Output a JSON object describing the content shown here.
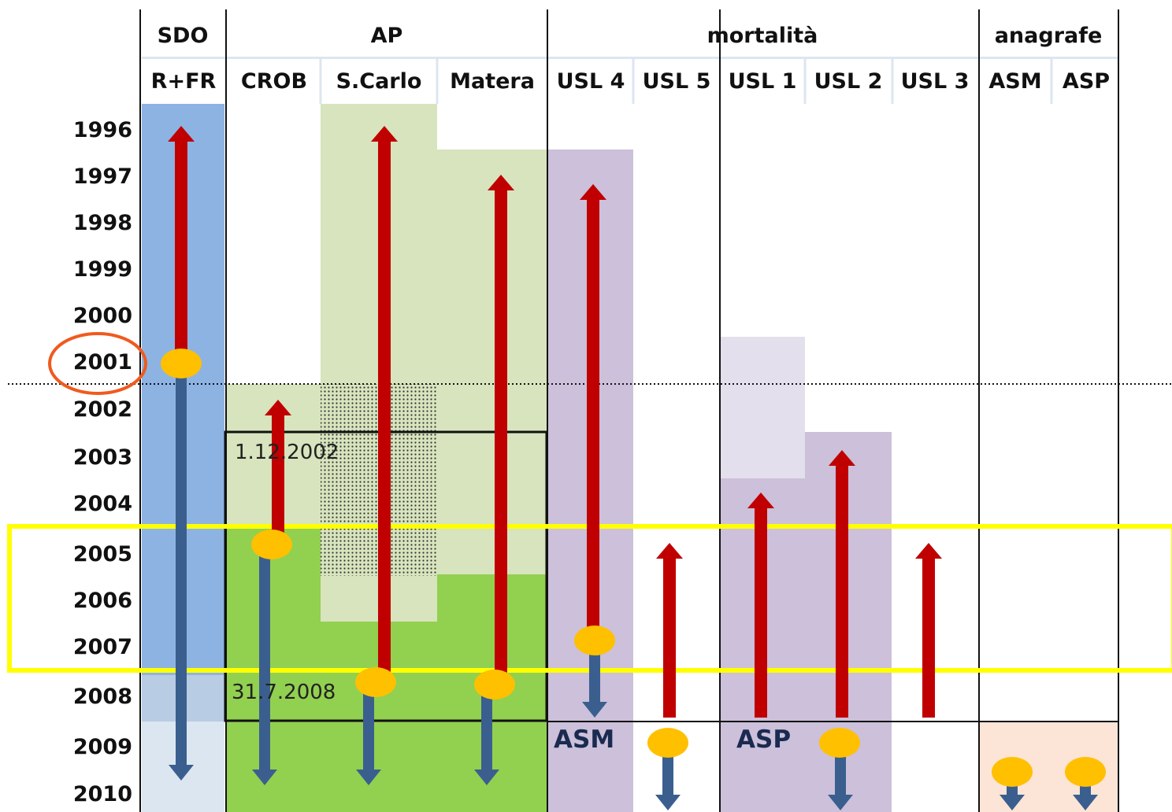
{
  "groups": [
    {
      "key": "sdo",
      "label": "SDO"
    },
    {
      "key": "ap",
      "label": "AP"
    },
    {
      "key": "mortalita",
      "label": "mortalità"
    },
    {
      "key": "anagrafe",
      "label": "anagrafe"
    }
  ],
  "columns": [
    {
      "key": "rfr",
      "label": "R+FR"
    },
    {
      "key": "crob",
      "label": "CROB"
    },
    {
      "key": "scarlo",
      "label": "S.Carlo"
    },
    {
      "key": "matera",
      "label": "Matera"
    },
    {
      "key": "usl4",
      "label": "USL 4"
    },
    {
      "key": "usl5",
      "label": "USL 5"
    },
    {
      "key": "usl1",
      "label": "USL 1"
    },
    {
      "key": "usl2",
      "label": "USL 2"
    },
    {
      "key": "usl3",
      "label": "USL 3"
    },
    {
      "key": "asm",
      "label": "ASM"
    },
    {
      "key": "asp",
      "label": "ASP"
    }
  ],
  "years": [
    "1996",
    "1997",
    "1998",
    "1999",
    "2000",
    "2001",
    "2002",
    "2003",
    "2004",
    "2005",
    "2006",
    "2007",
    "2008",
    "2009",
    "2010"
  ],
  "highlighted_year": "2001",
  "highlighted_period": [
    "2005",
    "2007"
  ],
  "notes": {
    "start_date": "1.12.2002",
    "end_date": "31.7.2008"
  },
  "annotations": {
    "asm": "ASM",
    "asp": "ASP"
  },
  "colors": {
    "backward_arrow": "#c00000",
    "forward_arrow": "#3a5f8f",
    "anchor_dot": "#ffc000",
    "highlight_band": "#ffff00",
    "highlight_circle": "#f05a1e",
    "sdo_fill": "#8db3e2",
    "ap_light_fill": "#d7e4bd",
    "ap_dark_fill": "#92d050",
    "mortality_fill": "#ccc0da",
    "mortality_light_fill": "#e4dfec",
    "anagrafe_fill": "#fce4d6"
  }
}
